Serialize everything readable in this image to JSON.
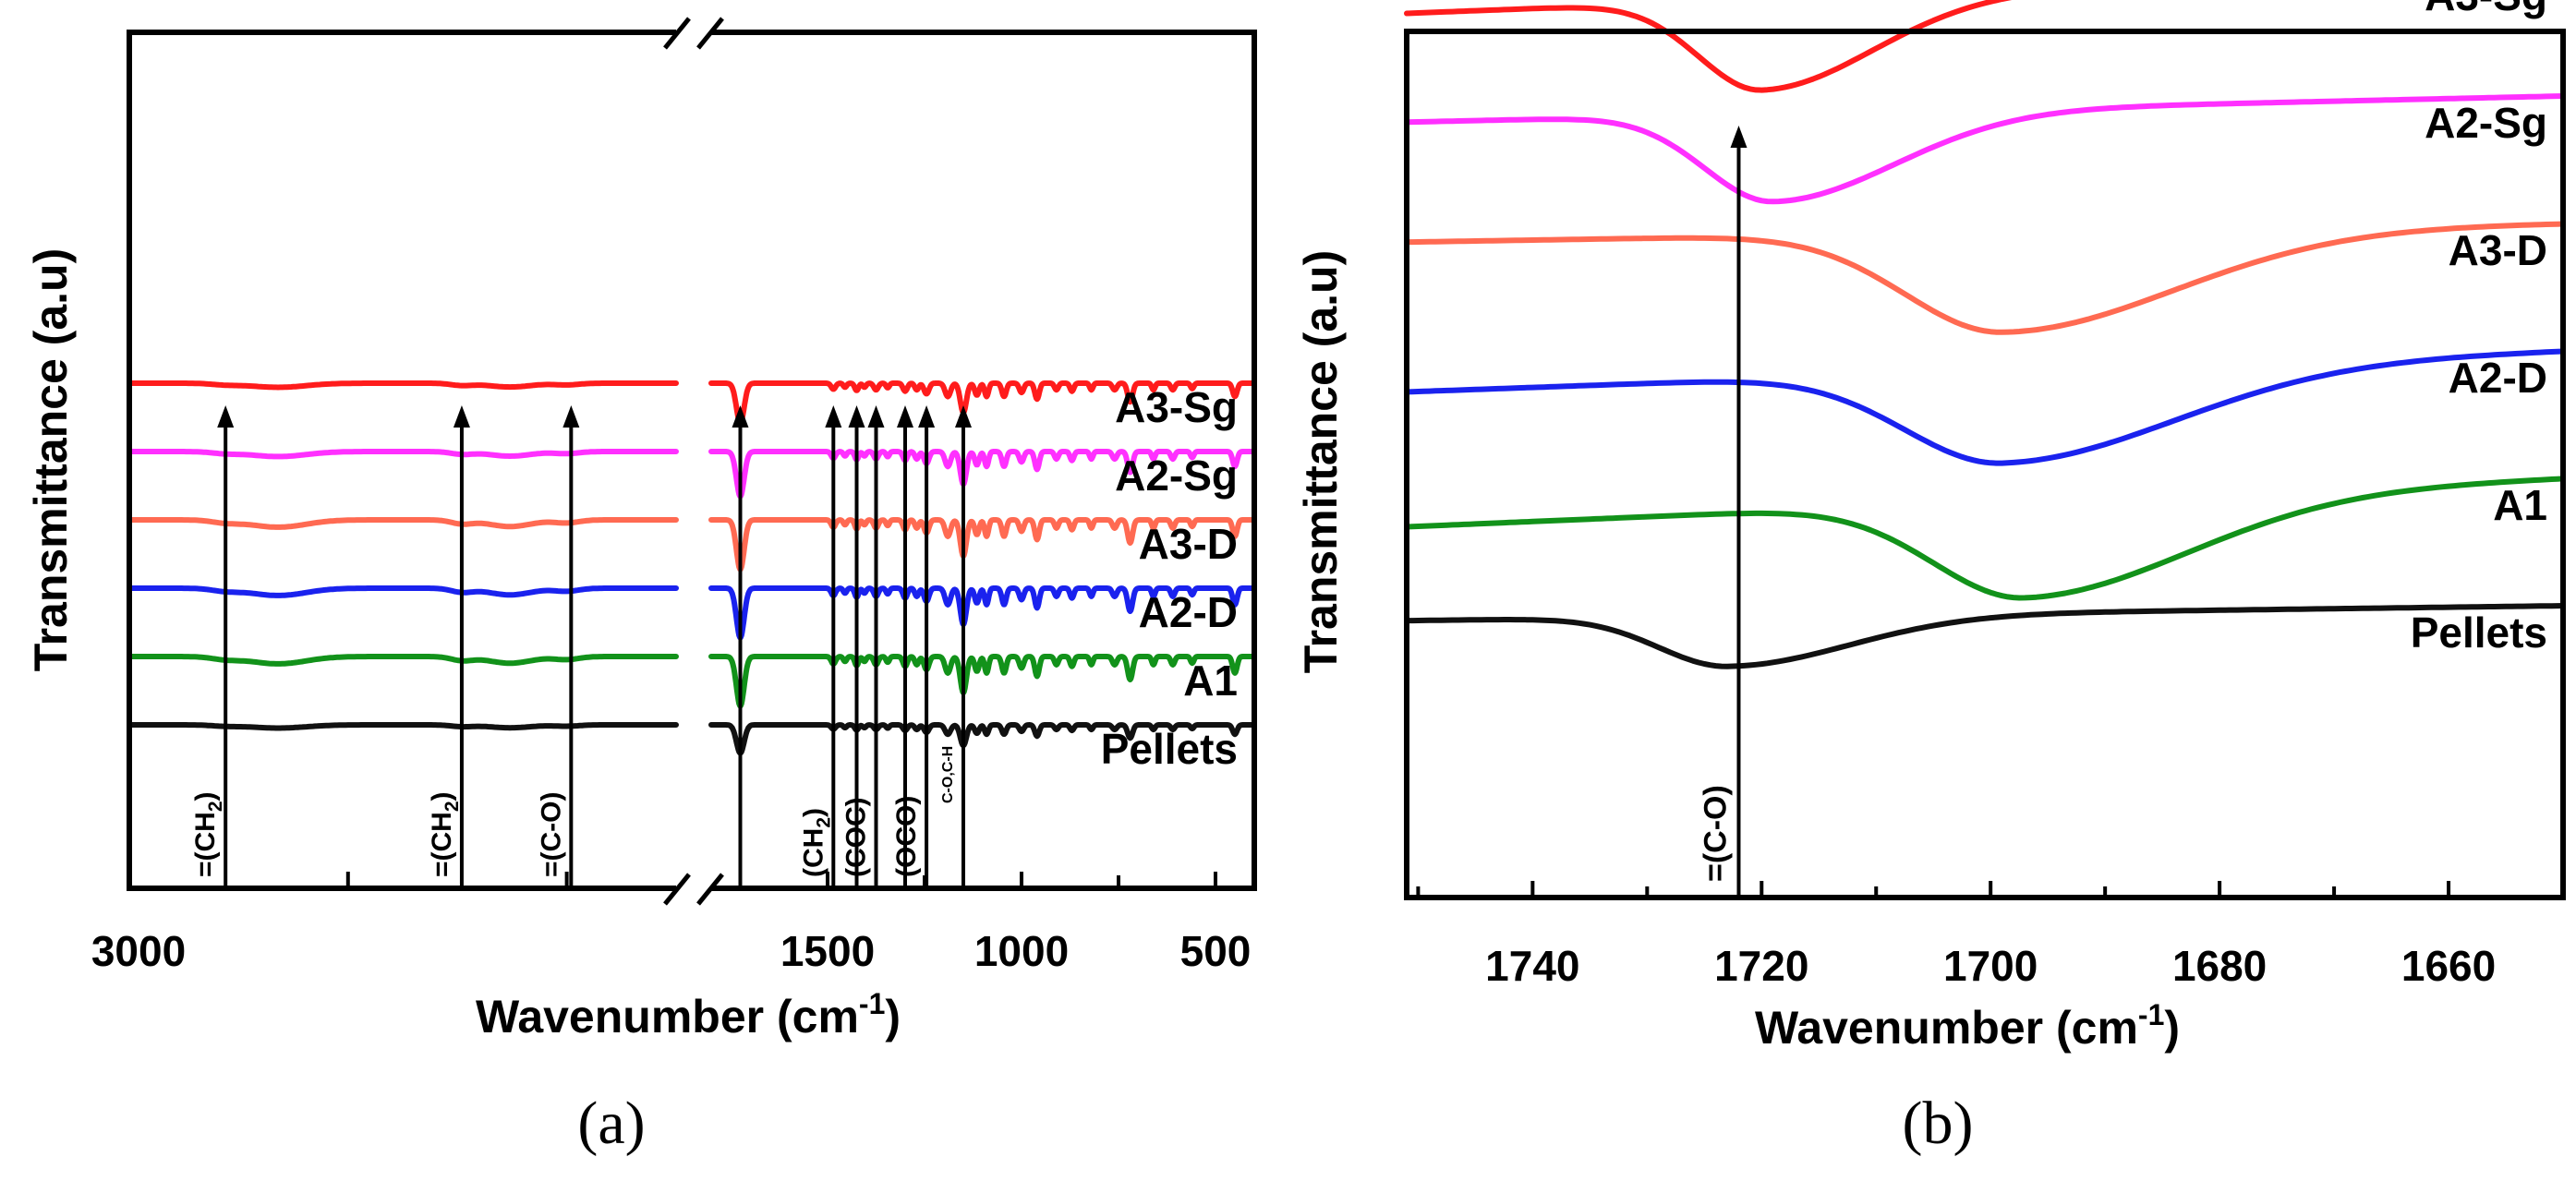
{
  "chart_data": [
    {
      "id": "a",
      "type": "line",
      "panel_caption": "(a)",
      "xlabel": "Wavenumber (cm",
      "xlabel_sup": "-1",
      "xlabel_tail": ")",
      "ylabel": "Transmittance (a.u)",
      "x_axis": "broken",
      "xlim_left": [
        3000,
        1750
      ],
      "xlim_right": [
        1800,
        400
      ],
      "xticks": [
        {
          "label": "3000",
          "value": 3000
        },
        {
          "label": "1500",
          "value": 1500
        },
        {
          "label": "1000",
          "value": 1000
        },
        {
          "label": "500",
          "value": 500
        }
      ],
      "series": [
        {
          "name": "A3-Sg",
          "color": "#ff1c1c",
          "offset": 5
        },
        {
          "name": "A2-Sg",
          "color": "#ff30ff",
          "offset": 4
        },
        {
          "name": "A3-D",
          "color": "#ff6a52",
          "offset": 3
        },
        {
          "name": "A2-D",
          "color": "#1a22ee",
          "offset": 2
        },
        {
          "name": "A1",
          "color": "#12921a",
          "offset": 1
        },
        {
          "name": "Pellets",
          "color": "#111111",
          "offset": 0
        }
      ],
      "markers": [
        {
          "label": "=(CH",
          "sub": "2",
          "tail": ")",
          "x": 2780
        },
        {
          "label": "=(CH",
          "sub": "2",
          "tail": ")",
          "x": 2240
        },
        {
          "label": "=(C-O)",
          "sub": "",
          "tail": "",
          "x": 1990
        },
        {
          "label": "",
          "sub": "",
          "tail": "",
          "x": 1725
        },
        {
          "label": "(CH",
          "sub": "2",
          "tail": ")",
          "x": 1485
        },
        {
          "label": "",
          "sub": "",
          "tail": "",
          "x": 1425
        },
        {
          "label": "(COC)",
          "sub": "",
          "tail": "",
          "x": 1375
        },
        {
          "label": "",
          "sub": "",
          "tail": "",
          "x": 1300
        },
        {
          "label": "(OCO)",
          "sub": "",
          "tail": "",
          "x": 1245
        },
        {
          "label": "C-O,C-H",
          "sub": "",
          "tail": "",
          "x": 1150
        }
      ]
    },
    {
      "id": "b",
      "type": "line",
      "panel_caption": "(b)",
      "xlabel": "Wavenumber (cm",
      "xlabel_sup": "-1",
      "xlabel_tail": ")",
      "ylabel": "Transmittance (a.u)",
      "xlim": [
        1751,
        1650
      ],
      "xticks": [
        {
          "label": "1740",
          "value": 1740
        },
        {
          "label": "1720",
          "value": 1720
        },
        {
          "label": "1700",
          "value": 1700
        },
        {
          "label": "1680",
          "value": 1680
        },
        {
          "label": "1660",
          "value": 1660
        }
      ],
      "series": [
        {
          "name": "A3-Sg",
          "color": "#ff1c1c",
          "offset": 5,
          "peak": 1720
        },
        {
          "name": "A2-Sg",
          "color": "#ff30ff",
          "offset": 4,
          "peak": 1719
        },
        {
          "name": "A3-D",
          "color": "#ff6a52",
          "offset": 3,
          "peak": 1699
        },
        {
          "name": "A2-D",
          "color": "#1a22ee",
          "offset": 2,
          "peak": 1699
        },
        {
          "name": "A1",
          "color": "#12921a",
          "offset": 1,
          "peak": 1697
        },
        {
          "name": "Pellets",
          "color": "#111111",
          "offset": 0,
          "peak": 1723
        }
      ],
      "markers": [
        {
          "label": "=(C-O)",
          "x": 1722
        }
      ]
    }
  ]
}
